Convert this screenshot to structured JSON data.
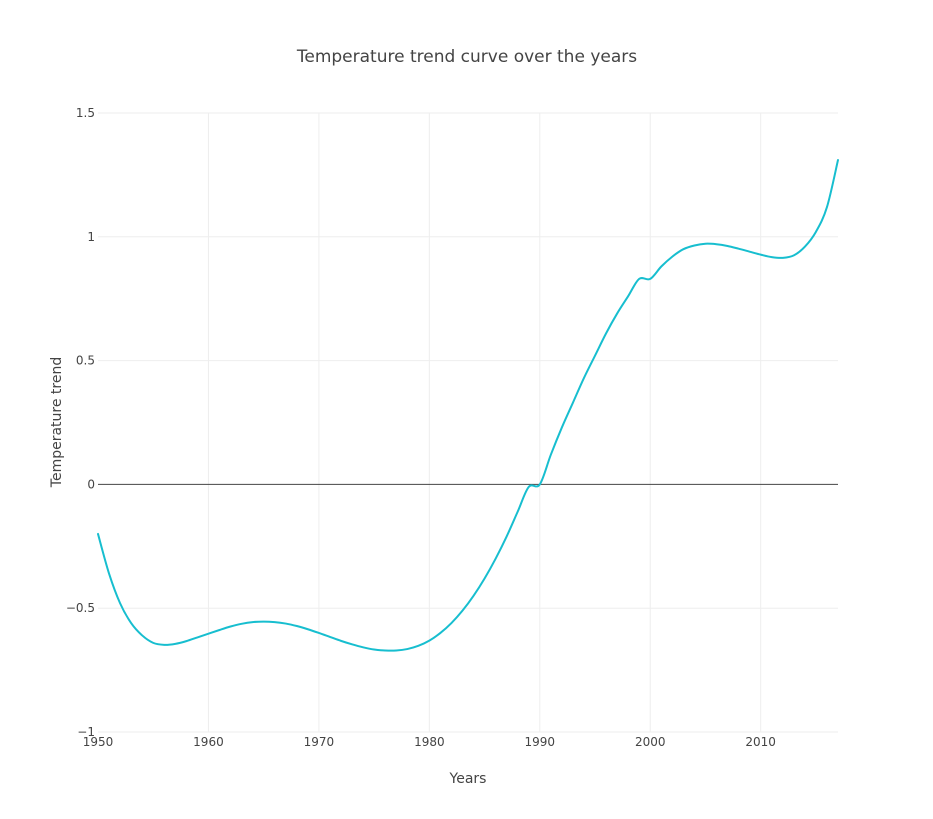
{
  "chart_data": {
    "type": "line",
    "title": "Temperature trend curve over the years",
    "xlabel": "Years",
    "ylabel": "Temperature trend",
    "xlim": [
      1950,
      2017
    ],
    "ylim": [
      -1,
      1.5
    ],
    "xticks": [
      1950,
      1960,
      1970,
      1980,
      1990,
      2000,
      2010
    ],
    "xtick_labels": [
      "1950",
      "1960",
      "1970",
      "1980",
      "1990",
      "2000",
      "2010"
    ],
    "yticks": [
      -1,
      -0.5,
      0,
      0.5,
      1,
      1.5
    ],
    "ytick_labels": [
      "−1",
      "−0.5",
      "0",
      "0.5",
      "1",
      "1.5"
    ],
    "grid": true,
    "zeroline": true,
    "line_color": "#17becf",
    "series": [
      {
        "x": [
          1950,
          1951,
          1952,
          1953,
          1954,
          1955,
          1956,
          1957,
          1958,
          1959,
          1960,
          1961,
          1962,
          1963,
          1964,
          1965,
          1966,
          1967,
          1968,
          1969,
          1970,
          1971,
          1972,
          1973,
          1974,
          1975,
          1976,
          1977,
          1978,
          1979,
          1980,
          1981,
          1982,
          1983,
          1984,
          1985,
          1986,
          1987,
          1988,
          1989,
          1990,
          1991,
          1992,
          1993,
          1994,
          1995,
          1996,
          1997,
          1998,
          1999,
          2000,
          2001,
          2002,
          2003,
          2004,
          2005,
          2006,
          2007,
          2008,
          2009,
          2010,
          2011,
          2012,
          2013,
          2014,
          2015,
          2016,
          2017
        ],
        "y": [
          -0.2,
          -0.36,
          -0.48,
          -0.56,
          -0.61,
          -0.64,
          -0.648,
          -0.644,
          -0.633,
          -0.618,
          -0.603,
          -0.588,
          -0.574,
          -0.563,
          -0.556,
          -0.554,
          -0.556,
          -0.562,
          -0.572,
          -0.585,
          -0.6,
          -0.616,
          -0.632,
          -0.646,
          -0.658,
          -0.667,
          -0.671,
          -0.671,
          -0.665,
          -0.652,
          -0.631,
          -0.6,
          -0.56,
          -0.51,
          -0.45,
          -0.38,
          -0.3,
          -0.21,
          -0.11,
          -0.01,
          0.0,
          0.12,
          0.23,
          0.33,
          0.43,
          0.52,
          0.61,
          0.69,
          0.76,
          0.83,
          0.83,
          0.88,
          0.92,
          0.95,
          0.965,
          0.972,
          0.97,
          0.963,
          0.952,
          0.94,
          0.928,
          0.918,
          0.915,
          0.925,
          0.96,
          1.02,
          1.12,
          1.31
        ]
      }
    ]
  }
}
